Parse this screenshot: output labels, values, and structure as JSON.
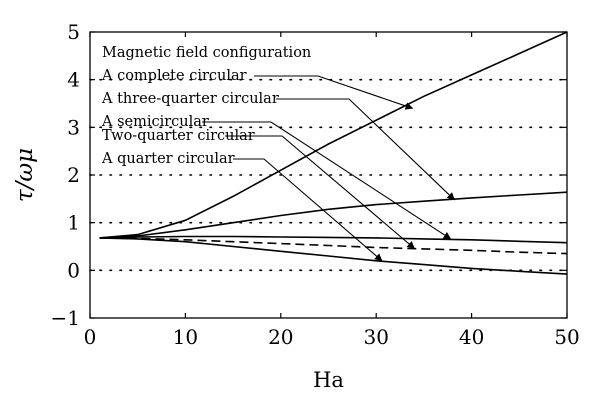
{
  "chart_data": {
    "type": "line",
    "xlabel": "Ha",
    "ylabel": "τ/ωμ",
    "xlim": [
      0,
      50
    ],
    "ylim": [
      -1,
      5
    ],
    "x_ticks": [
      0,
      10,
      20,
      30,
      40,
      50
    ],
    "y_ticks": [
      -1,
      0,
      1,
      2,
      3,
      4,
      5
    ],
    "grid": "dotted horizontal lines at y = 0 to 4",
    "legend_title": "Magnetic field configuration",
    "legend_position": "top-left",
    "series": [
      {
        "name": "A complete circular",
        "style": "solid",
        "x": [
          1,
          5,
          10,
          15,
          20,
          25,
          30,
          35,
          40,
          45,
          50
        ],
        "y": [
          0.68,
          0.75,
          1.05,
          1.55,
          2.1,
          2.65,
          3.15,
          3.65,
          4.1,
          4.55,
          5.0
        ]
      },
      {
        "name": "A three-quarter circular",
        "style": "solid",
        "x": [
          1,
          5,
          10,
          15,
          20,
          25,
          30,
          35,
          40,
          45,
          50
        ],
        "y": [
          0.68,
          0.72,
          0.85,
          1.0,
          1.15,
          1.28,
          1.38,
          1.45,
          1.52,
          1.58,
          1.64
        ]
      },
      {
        "name": "A semicircular",
        "style": "solid",
        "x": [
          1,
          5,
          10,
          15,
          20,
          25,
          30,
          35,
          40,
          45,
          50
        ],
        "y": [
          0.68,
          0.7,
          0.71,
          0.71,
          0.7,
          0.69,
          0.68,
          0.66,
          0.64,
          0.61,
          0.58
        ]
      },
      {
        "name": "Two-quarter circular",
        "style": "dashed",
        "x": [
          1,
          5,
          10,
          15,
          20,
          25,
          30,
          35,
          40,
          45,
          50
        ],
        "y": [
          0.68,
          0.67,
          0.64,
          0.6,
          0.56,
          0.52,
          0.48,
          0.45,
          0.42,
          0.38,
          0.35
        ]
      },
      {
        "name": "A quarter circular",
        "style": "solid",
        "x": [
          1,
          5,
          10,
          15,
          20,
          25,
          30,
          35,
          40,
          45,
          50
        ],
        "y": [
          0.68,
          0.66,
          0.6,
          0.5,
          0.4,
          0.3,
          0.2,
          0.12,
          0.04,
          -0.02,
          -0.08
        ]
      }
    ],
    "legend_arrow_targets": [
      {
        "series": "A complete circular",
        "x": 33.8,
        "y": 3.4
      },
      {
        "series": "A three-quarter circular",
        "x": 38.2,
        "y": 1.48
      },
      {
        "series": "A semicircular",
        "x": 37.8,
        "y": 0.66
      },
      {
        "series": "Two-quarter circular",
        "x": 34.0,
        "y": 0.46
      },
      {
        "series": "A quarter circular",
        "x": 30.6,
        "y": 0.2
      }
    ]
  }
}
